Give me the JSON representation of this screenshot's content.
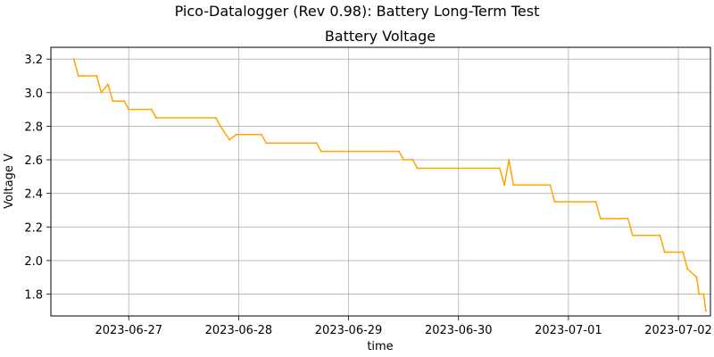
{
  "figure": {
    "suptitle": "Pico-Datalogger (Rev 0.98): Battery Long-Term Test"
  },
  "chart_data": {
    "type": "line",
    "title": "Battery Voltage",
    "xlabel": "time",
    "ylabel": "Voltage V",
    "x_ticks": [
      "2023-06-27",
      "2023-06-28",
      "2023-06-29",
      "2023-06-30",
      "2023-07-01",
      "2023-07-02"
    ],
    "y_ticks": [
      "1.8",
      "2.0",
      "2.2",
      "2.4",
      "2.6",
      "2.8",
      "3.0",
      "3.2"
    ],
    "xlim": [
      "2023-06-26 07:00",
      "2023-07-02 07:00"
    ],
    "ylim": [
      1.67,
      3.27
    ],
    "grid": true,
    "line_color": "#FFA500",
    "series": [
      {
        "points": [
          [
            "2023-06-26 12:00",
            3.2
          ],
          [
            "2023-06-26 13:00",
            3.1
          ],
          [
            "2023-06-26 14:00",
            3.1
          ],
          [
            "2023-06-26 17:00",
            3.1
          ],
          [
            "2023-06-26 18:00",
            3.0
          ],
          [
            "2023-06-26 19:30",
            3.05
          ],
          [
            "2023-06-26 20:30",
            2.95
          ],
          [
            "2023-06-26 23:00",
            2.95
          ],
          [
            "2023-06-27 00:00",
            2.9
          ],
          [
            "2023-06-27 05:00",
            2.9
          ],
          [
            "2023-06-27 06:00",
            2.85
          ],
          [
            "2023-06-27 19:00",
            2.85
          ],
          [
            "2023-06-27 20:00",
            2.8
          ],
          [
            "2023-06-27 22:00",
            2.72
          ],
          [
            "2023-06-27 23:30",
            2.75
          ],
          [
            "2023-06-28 05:00",
            2.75
          ],
          [
            "2023-06-28 06:00",
            2.7
          ],
          [
            "2023-06-28 17:00",
            2.7
          ],
          [
            "2023-06-28 18:00",
            2.65
          ],
          [
            "2023-06-29 11:00",
            2.65
          ],
          [
            "2023-06-29 12:00",
            2.6
          ],
          [
            "2023-06-29 14:00",
            2.6
          ],
          [
            "2023-06-29 15:00",
            2.55
          ],
          [
            "2023-06-30 09:00",
            2.55
          ],
          [
            "2023-06-30 10:00",
            2.45
          ],
          [
            "2023-06-30 11:00",
            2.6
          ],
          [
            "2023-06-30 12:00",
            2.45
          ],
          [
            "2023-06-30 20:00",
            2.45
          ],
          [
            "2023-06-30 21:00",
            2.35
          ],
          [
            "2023-07-01 06:00",
            2.35
          ],
          [
            "2023-07-01 07:00",
            2.25
          ],
          [
            "2023-07-01 13:00",
            2.25
          ],
          [
            "2023-07-01 14:00",
            2.15
          ],
          [
            "2023-07-01 20:00",
            2.15
          ],
          [
            "2023-07-01 21:00",
            2.05
          ],
          [
            "2023-07-02 01:00",
            2.05
          ],
          [
            "2023-07-02 02:00",
            1.95
          ],
          [
            "2023-07-02 04:00",
            1.9
          ],
          [
            "2023-07-02 04:30",
            1.8
          ],
          [
            "2023-07-02 05:30",
            1.8
          ],
          [
            "2023-07-02 06:00",
            1.7
          ]
        ]
      }
    ]
  }
}
